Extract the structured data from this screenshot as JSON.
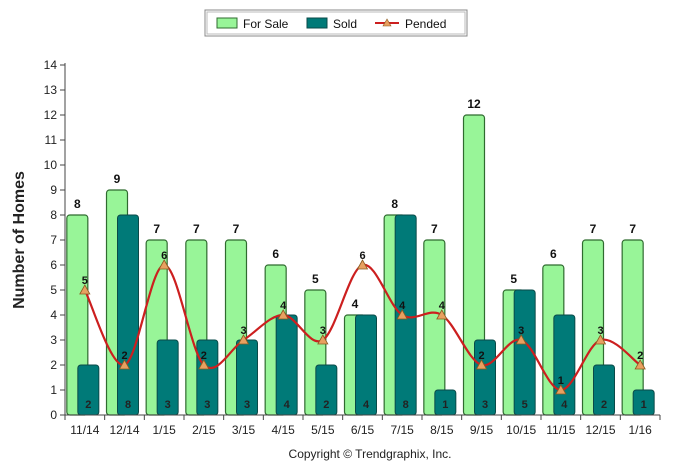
{
  "chart_data": {
    "type": "bar",
    "title": "",
    "xlabel": "",
    "ylabel": "Number of Homes",
    "ylim": [
      0,
      14
    ],
    "yticks": [
      0,
      1,
      2,
      3,
      4,
      5,
      6,
      7,
      8,
      9,
      10,
      11,
      12,
      13,
      14
    ],
    "grid": false,
    "legend_position": "top-center",
    "categories": [
      "11/14",
      "12/14",
      "1/15",
      "2/15",
      "3/15",
      "4/15",
      "5/15",
      "6/15",
      "7/15",
      "8/15",
      "9/15",
      "10/15",
      "11/15",
      "12/15",
      "1/16"
    ],
    "series": [
      {
        "name": "For Sale",
        "kind": "bar",
        "color": "#98f598",
        "values": [
          8,
          9,
          7,
          7,
          7,
          6,
          5,
          4,
          8,
          7,
          12,
          5,
          6,
          7,
          7
        ]
      },
      {
        "name": "Sold",
        "kind": "bar",
        "color": "#007a78",
        "values": [
          2,
          8,
          3,
          3,
          3,
          4,
          2,
          4,
          8,
          1,
          3,
          5,
          4,
          2,
          1
        ]
      },
      {
        "name": "Pended",
        "kind": "line",
        "color": "#cc1f1f",
        "marker_color": "#e8a060",
        "values": [
          5,
          2,
          6,
          2,
          3,
          4,
          3,
          6,
          4,
          4,
          2,
          3,
          1,
          3,
          2
        ]
      }
    ],
    "annotations": [
      "Copyright © Trendgraphix, Inc."
    ]
  }
}
